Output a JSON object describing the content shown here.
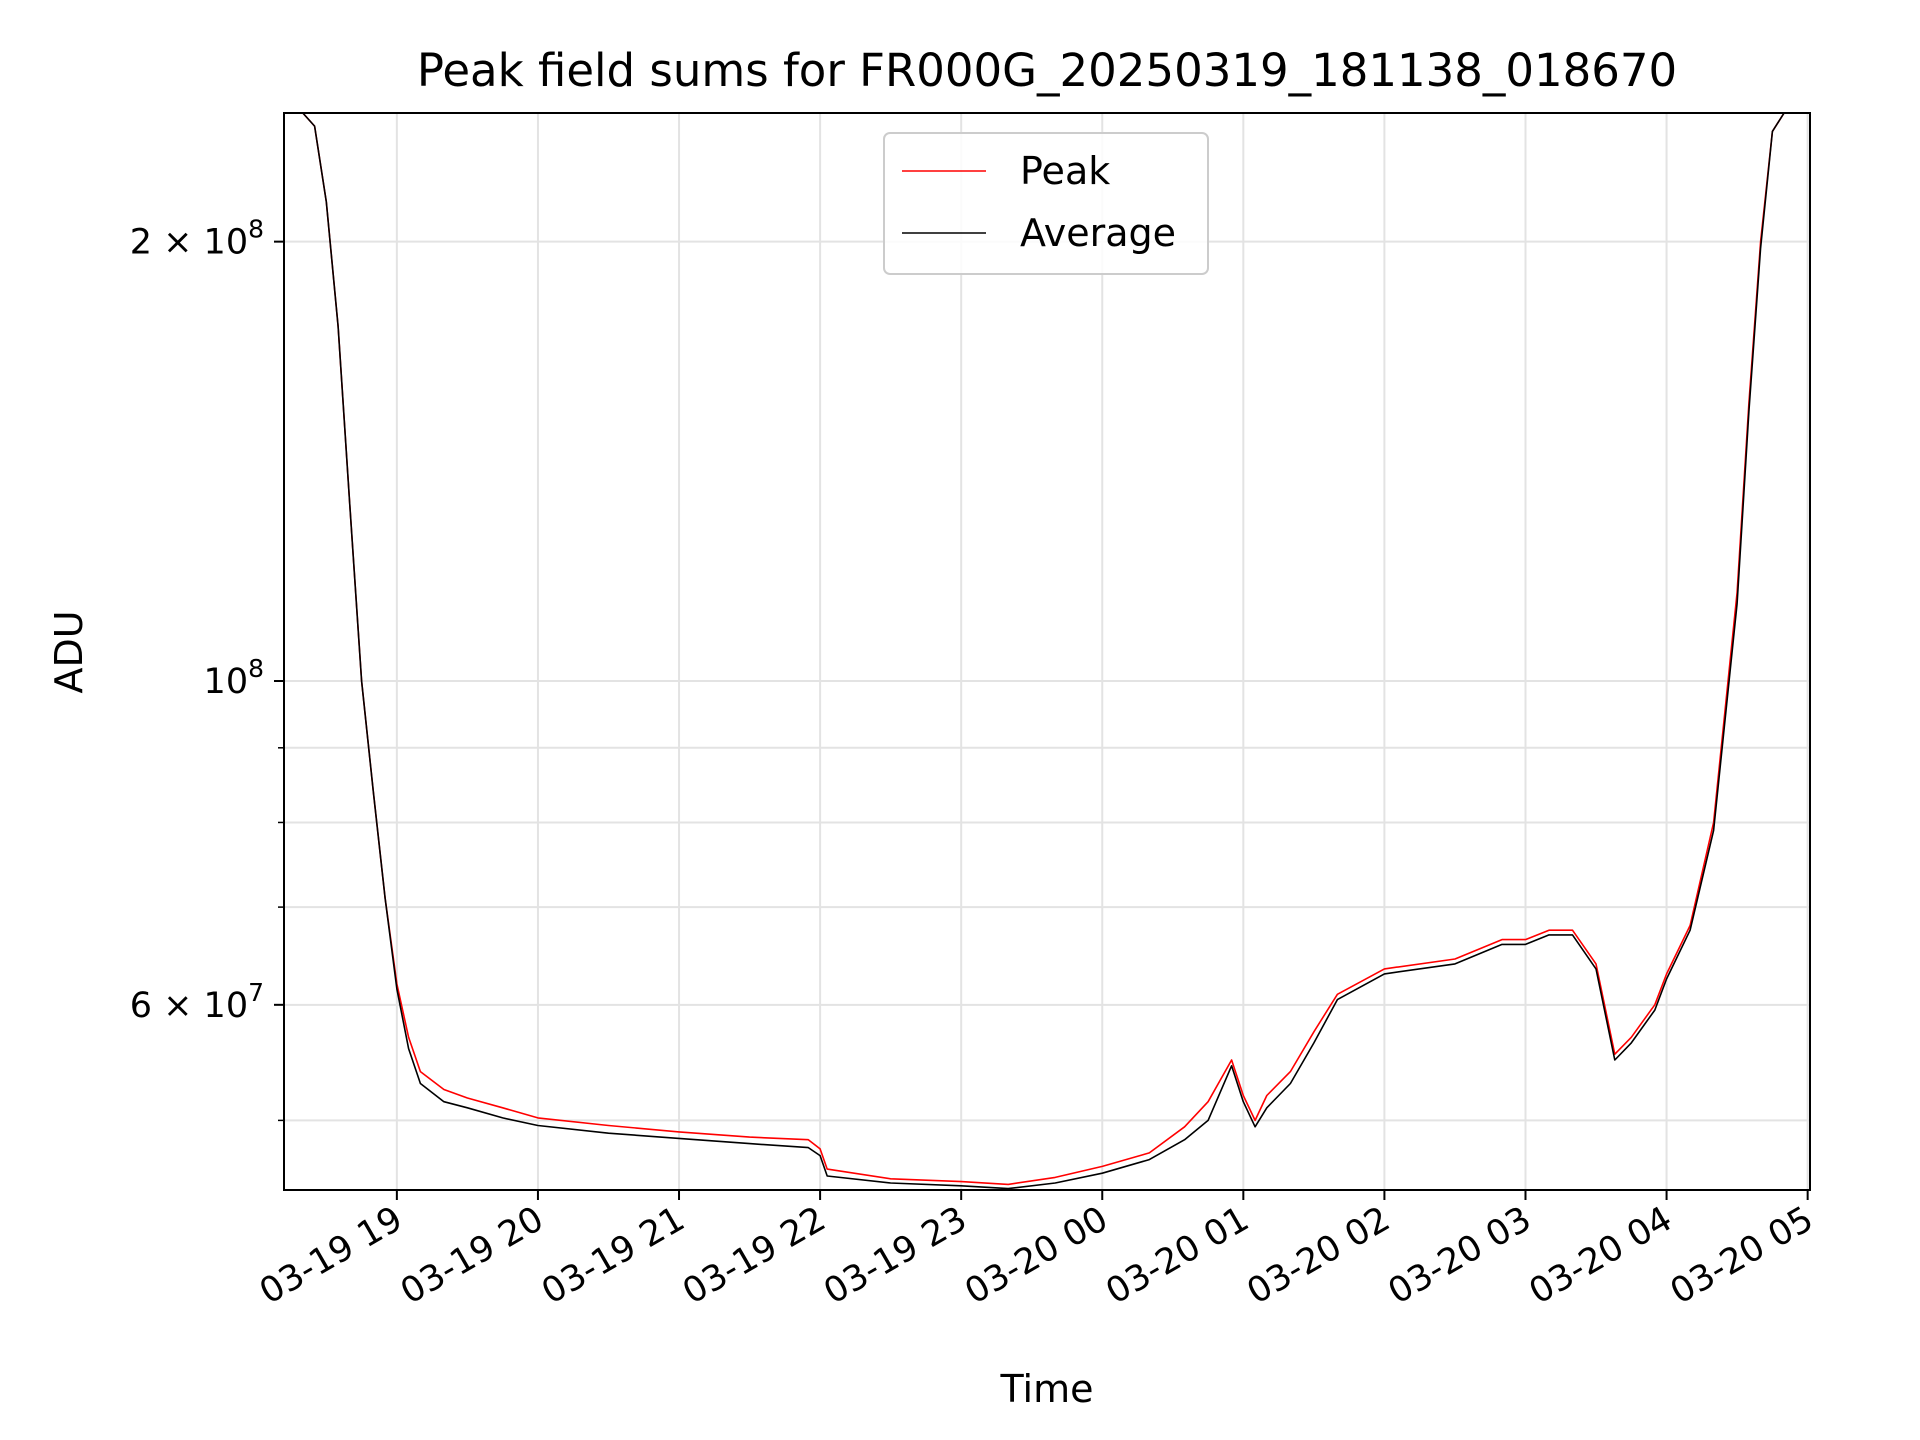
{
  "chart_data": {
    "type": "line",
    "title": "Peak field sums for FR000G_20250319_181138_018670",
    "xlabel": "Time",
    "ylabel": "ADU",
    "yscale": "log",
    "ylim": [
      44800000,
      245000000
    ],
    "xlim": [
      "2025-03-19 18:12",
      "2025-03-20 05:01"
    ],
    "grid": true,
    "legend_position": "top-center",
    "x_ticks": [
      "03-19 19",
      "03-19 20",
      "03-19 21",
      "03-19 22",
      "03-19 23",
      "03-20 00",
      "03-20 01",
      "03-20 02",
      "03-20 03",
      "03-20 04",
      "03-20 05"
    ],
    "y_major_ticks": [
      {
        "value": 200000000,
        "base": "2 × 10",
        "exp": "8"
      },
      {
        "value": 100000000,
        "base": "10",
        "exp": "8"
      },
      {
        "value": 60000000,
        "base": "6 × 10",
        "exp": "7"
      }
    ],
    "y_minor_ticks": [
      50000000,
      70000000,
      80000000,
      90000000
    ],
    "colors": {
      "peak": "#ff0000",
      "average": "#000000",
      "grid": "#e3e3e3"
    },
    "series": [
      {
        "name": "Peak",
        "x": [
          "2025-03-19 18:12",
          "2025-03-19 18:20",
          "2025-03-19 18:25",
          "2025-03-19 18:30",
          "2025-03-19 18:35",
          "2025-03-19 18:40",
          "2025-03-19 18:45",
          "2025-03-19 18:50",
          "2025-03-19 18:55",
          "2025-03-19 19:00",
          "2025-03-19 19:05",
          "2025-03-19 19:10",
          "2025-03-19 19:20",
          "2025-03-19 19:30",
          "2025-03-19 19:45",
          "2025-03-19 20:00",
          "2025-03-19 20:30",
          "2025-03-19 21:00",
          "2025-03-19 21:30",
          "2025-03-19 21:55",
          "2025-03-19 22:00",
          "2025-03-19 22:03",
          "2025-03-19 22:30",
          "2025-03-19 23:00",
          "2025-03-19 23:20",
          "2025-03-19 23:40",
          "2025-03-20 00:00",
          "2025-03-20 00:20",
          "2025-03-20 00:35",
          "2025-03-20 00:45",
          "2025-03-20 00:55",
          "2025-03-20 01:00",
          "2025-03-20 01:05",
          "2025-03-20 01:10",
          "2025-03-20 01:20",
          "2025-03-20 01:30",
          "2025-03-20 01:40",
          "2025-03-20 02:00",
          "2025-03-20 02:30",
          "2025-03-20 02:50",
          "2025-03-20 03:00",
          "2025-03-20 03:10",
          "2025-03-20 03:20",
          "2025-03-20 03:30",
          "2025-03-20 03:38",
          "2025-03-20 03:45",
          "2025-03-20 03:55",
          "2025-03-20 04:00",
          "2025-03-20 04:10",
          "2025-03-20 04:20",
          "2025-03-20 04:30",
          "2025-03-20 04:35",
          "2025-03-20 04:40",
          "2025-03-20 04:45",
          "2025-03-20 04:50",
          "2025-03-20 05:01"
        ],
        "values": [
          245000000,
          245000000,
          240000000,
          213000000,
          175000000,
          132000000,
          100000000,
          84000000,
          71000000,
          62000000,
          57000000,
          54000000,
          52500000,
          51800000,
          51000000,
          50200000,
          49600000,
          49100000,
          48700000,
          48500000,
          47800000,
          46300000,
          45600000,
          45400000,
          45200000,
          45700000,
          46500000,
          47500000,
          49500000,
          51500000,
          55000000,
          52000000,
          50000000,
          52000000,
          54000000,
          57500000,
          61000000,
          63500000,
          64500000,
          66500000,
          66500000,
          67500000,
          67500000,
          64000000,
          55500000,
          57000000,
          60000000,
          63000000,
          68000000,
          80000000,
          115000000,
          155000000,
          200000000,
          238000000,
          245000000,
          245000000
        ]
      },
      {
        "name": "Average",
        "x": [
          "2025-03-19 18:12",
          "2025-03-19 18:20",
          "2025-03-19 18:25",
          "2025-03-19 18:30",
          "2025-03-19 18:35",
          "2025-03-19 18:40",
          "2025-03-19 18:45",
          "2025-03-19 18:50",
          "2025-03-19 18:55",
          "2025-03-19 19:00",
          "2025-03-19 19:05",
          "2025-03-19 19:10",
          "2025-03-19 19:20",
          "2025-03-19 19:30",
          "2025-03-19 19:45",
          "2025-03-19 20:00",
          "2025-03-19 20:30",
          "2025-03-19 21:00",
          "2025-03-19 21:30",
          "2025-03-19 21:55",
          "2025-03-19 22:00",
          "2025-03-19 22:03",
          "2025-03-19 22:30",
          "2025-03-19 23:00",
          "2025-03-19 23:20",
          "2025-03-19 23:40",
          "2025-03-20 00:00",
          "2025-03-20 00:20",
          "2025-03-20 00:35",
          "2025-03-20 00:45",
          "2025-03-20 00:55",
          "2025-03-20 01:00",
          "2025-03-20 01:05",
          "2025-03-20 01:10",
          "2025-03-20 01:20",
          "2025-03-20 01:30",
          "2025-03-20 01:40",
          "2025-03-20 02:00",
          "2025-03-20 02:30",
          "2025-03-20 02:50",
          "2025-03-20 03:00",
          "2025-03-20 03:10",
          "2025-03-20 03:20",
          "2025-03-20 03:30",
          "2025-03-20 03:38",
          "2025-03-20 03:45",
          "2025-03-20 03:55",
          "2025-03-20 04:00",
          "2025-03-20 04:10",
          "2025-03-20 04:20",
          "2025-03-20 04:30",
          "2025-03-20 04:35",
          "2025-03-20 04:40",
          "2025-03-20 04:45",
          "2025-03-20 04:50",
          "2025-03-20 05:01"
        ],
        "values": [
          245000000,
          245000000,
          240000000,
          213000000,
          175000000,
          132000000,
          100000000,
          84000000,
          71000000,
          61500000,
          56000000,
          53000000,
          51500000,
          51000000,
          50200000,
          49600000,
          49000000,
          48600000,
          48200000,
          47900000,
          47300000,
          45800000,
          45300000,
          45100000,
          44900000,
          45300000,
          46000000,
          47000000,
          48500000,
          50000000,
          54500000,
          51500000,
          49500000,
          51000000,
          53000000,
          56500000,
          60500000,
          63000000,
          64000000,
          66000000,
          66000000,
          67000000,
          67000000,
          63500000,
          55000000,
          56500000,
          59500000,
          62500000,
          67500000,
          79000000,
          113000000,
          153000000,
          198000000,
          238000000,
          245000000,
          245000000
        ]
      }
    ]
  }
}
